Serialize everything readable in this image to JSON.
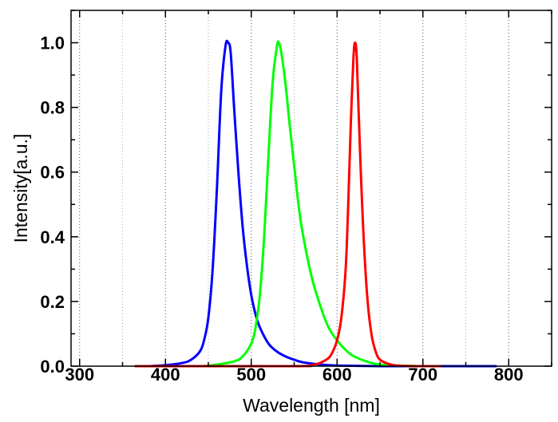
{
  "chart_data": {
    "type": "line",
    "title": "",
    "xlabel": "Wavelength [nm]",
    "ylabel": "Intensity[a.u.]",
    "xlim": [
      290,
      850
    ],
    "ylim": [
      0,
      1.1
    ],
    "xticks": [
      300,
      400,
      500,
      600,
      700,
      800
    ],
    "yticks": [
      0.0,
      0.2,
      0.4,
      0.6,
      0.8,
      1.0
    ],
    "xtick_labels": [
      "300",
      "400",
      "500",
      "600",
      "700",
      "800"
    ],
    "ytick_labels": [
      "0.0",
      "0.2",
      "0.4",
      "0.6",
      "0.8",
      "1.0"
    ],
    "grid": "vertical dotted",
    "legend": "none",
    "series": [
      {
        "color": "#0000ff",
        "x": [
          380,
          400,
          420,
          430,
          440,
          445,
          450,
          455,
          460,
          465,
          470,
          473,
          476,
          480,
          485,
          490,
          495,
          500,
          505,
          510,
          520,
          530,
          540,
          550,
          560,
          580,
          600,
          650,
          700,
          785
        ],
        "y": [
          0.0,
          0.003,
          0.01,
          0.02,
          0.045,
          0.08,
          0.15,
          0.3,
          0.55,
          0.85,
          0.99,
          1.0,
          0.97,
          0.8,
          0.6,
          0.43,
          0.31,
          0.22,
          0.16,
          0.12,
          0.07,
          0.045,
          0.03,
          0.02,
          0.012,
          0.005,
          0.002,
          0.0,
          0.0,
          0.0
        ]
      },
      {
        "color": "#00ff00",
        "x": [
          380,
          440,
          460,
          480,
          490,
          500,
          505,
          510,
          515,
          520,
          525,
          530,
          532,
          535,
          540,
          545,
          550,
          555,
          560,
          570,
          580,
          590,
          600,
          610,
          620,
          640,
          660,
          700
        ],
        "y": [
          0.0,
          0.0,
          0.005,
          0.015,
          0.03,
          0.07,
          0.12,
          0.22,
          0.4,
          0.65,
          0.88,
          0.99,
          1.0,
          0.97,
          0.87,
          0.74,
          0.62,
          0.5,
          0.41,
          0.28,
          0.19,
          0.12,
          0.08,
          0.05,
          0.03,
          0.01,
          0.003,
          0.0
        ]
      },
      {
        "color": "#ff0000",
        "x": [
          365,
          550,
          570,
          580,
          590,
          595,
          600,
          605,
          610,
          613,
          616,
          619,
          621,
          623,
          626,
          630,
          635,
          640,
          645,
          650,
          660,
          670,
          690,
          720
        ],
        "y": [
          0.0,
          0.0,
          0.003,
          0.01,
          0.025,
          0.045,
          0.08,
          0.15,
          0.3,
          0.5,
          0.75,
          0.95,
          1.0,
          0.95,
          0.72,
          0.45,
          0.22,
          0.1,
          0.045,
          0.02,
          0.007,
          0.002,
          0.0,
          0.0
        ]
      }
    ]
  }
}
